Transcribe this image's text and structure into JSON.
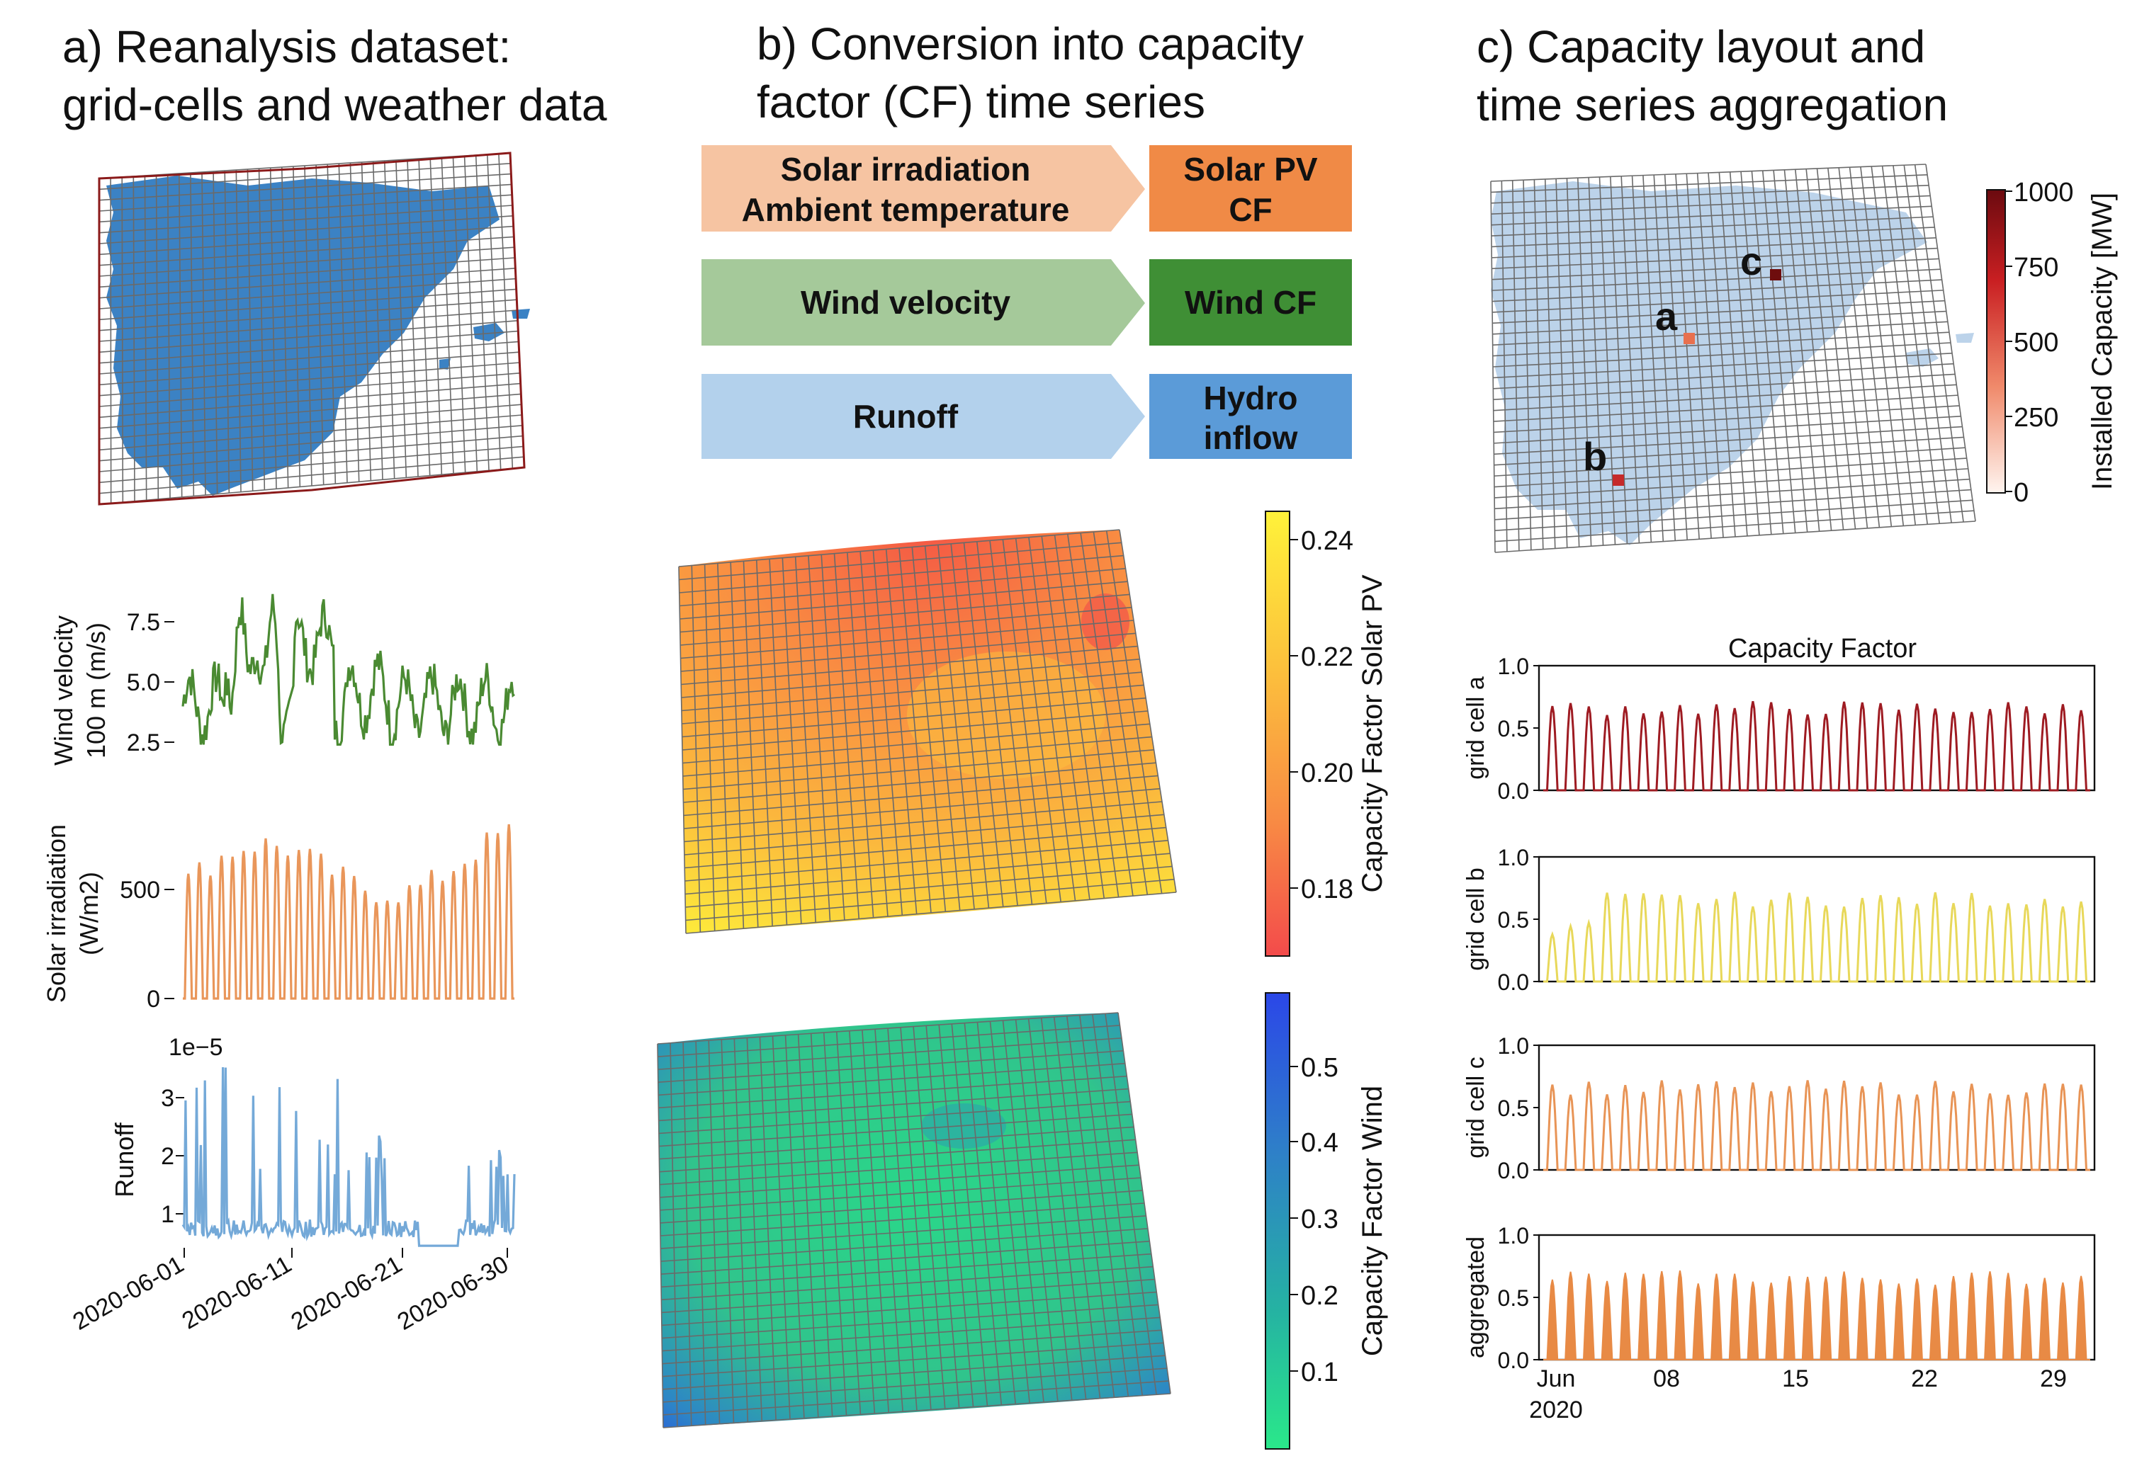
{
  "panel_a": {
    "title_line1": "a) Reanalysis dataset:",
    "title_line2": "grid-cells and weather data",
    "wind_ylabel_line1": "Wind velocity",
    "wind_ylabel_line2": "100 m (m/s)",
    "wind_ticks": [
      "7.5",
      "5.0",
      "2.5"
    ],
    "solar_ylabel_line1": "Solar irradiation",
    "solar_ylabel_line2": "(W/m2)",
    "solar_ticks": [
      "500",
      "0"
    ],
    "runoff_ylabel": "Runoff",
    "runoff_exponent": "1e−5",
    "runoff_ticks": [
      "3",
      "2",
      "1"
    ],
    "date_ticks": [
      "2020-06-01",
      "2020-06-11",
      "2020-06-21",
      "2020-06-30"
    ],
    "colors": {
      "wind": "#4a8a32",
      "solar": "#e9965a",
      "runoff": "#74a9d8",
      "map": "#3b82c4",
      "frame": "#8b1a1a"
    }
  },
  "panel_b": {
    "title_line1": "b) Conversion into capacity",
    "title_line2": "factor (CF) time series",
    "rows": [
      {
        "input_line1": "Solar irradiation",
        "input_line2": "Ambient temperature",
        "output_line1": "Solar PV",
        "output_line2": "CF",
        "input_color": "#f6c4a2",
        "output_color": "#f08a46"
      },
      {
        "input_line1": "Wind velocity",
        "input_line2": "",
        "output_line1": "Wind CF",
        "output_line2": "",
        "input_color": "#a5c99a",
        "output_color": "#3f8f35"
      },
      {
        "input_line1": "Runoff",
        "input_line2": "",
        "output_line1": "Hydro",
        "output_line2": "inflow",
        "input_color": "#b3d1ec",
        "output_color": "#5b9bd8"
      }
    ],
    "solar_cbar_label": "Capacity Factor Solar PV",
    "solar_cbar_ticks": [
      "0.24",
      "0.22",
      "0.20",
      "0.18"
    ],
    "wind_cbar_label": "Capacity Factor Wind",
    "wind_cbar_ticks": [
      "0.5",
      "0.4",
      "0.3",
      "0.2",
      "0.1"
    ]
  },
  "panel_c": {
    "title_line1": "c) Capacity layout and",
    "title_line2": "time series aggregation",
    "cbar_label": "Installed Capacity [MW]",
    "cbar_ticks": [
      "1000",
      "750",
      "500",
      "250",
      "0"
    ],
    "cells": [
      {
        "label": "c",
        "capacity_mw": 1000,
        "color": "#6e0d0d"
      },
      {
        "label": "a",
        "capacity_mw": 450,
        "color": "#e8704f"
      },
      {
        "label": "b",
        "capacity_mw": 750,
        "color": "#c52a2a"
      }
    ],
    "plot_title": "Capacity Factor",
    "subplots": [
      {
        "ylabel": "grid cell a",
        "color": "#9e1b22"
      },
      {
        "ylabel": "grid cell b",
        "color": "#e8d85a"
      },
      {
        "ylabel": "grid cell c",
        "color": "#e89456"
      },
      {
        "ylabel": "aggregated",
        "color": "#e88a45"
      }
    ],
    "y_ticks": [
      "1.0",
      "0.5",
      "0.0"
    ],
    "x_ticks": [
      "Jun",
      "08",
      "15",
      "22",
      "29"
    ],
    "x_year": "2020"
  }
}
